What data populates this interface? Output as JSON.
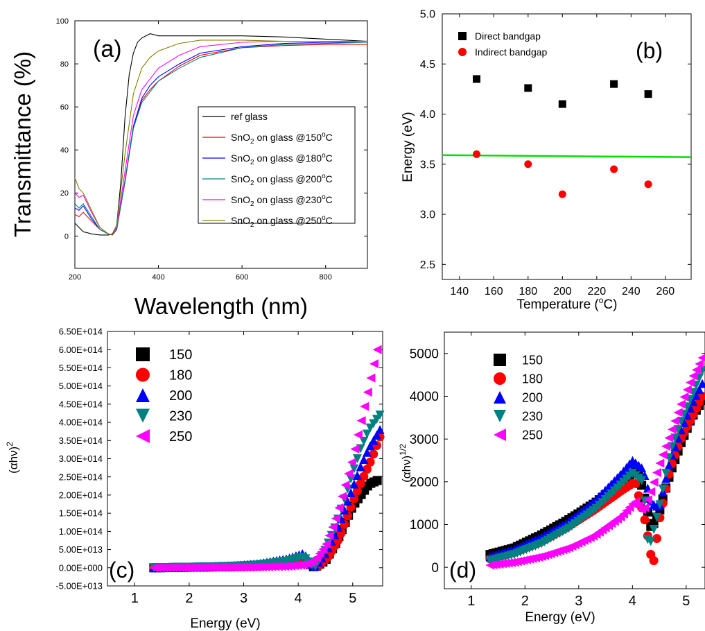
{
  "figure": {
    "background": "#ffffff"
  },
  "chart_data": [
    {
      "id": "a",
      "type": "line",
      "panel_label": "(a)",
      "xlabel": "Wavelength (nm)",
      "ylabel": "Transmittance (%)",
      "xlim": [
        200,
        900
      ],
      "ylim": [
        -15,
        100
      ],
      "xticks": [
        200,
        400,
        600,
        800
      ],
      "yticks": [
        0,
        20,
        40,
        60,
        80,
        100
      ],
      "grid": false,
      "legend_position": "center-right",
      "series": [
        {
          "name": "ref glass",
          "label_main": "ref glass",
          "label_sup": "",
          "label_sub": "",
          "label_rest": "",
          "color": "#000000",
          "x": [
            200,
            210,
            220,
            240,
            260,
            280,
            290,
            300,
            310,
            320,
            330,
            340,
            350,
            360,
            370,
            380,
            400,
            450,
            500,
            600,
            700,
            800,
            900
          ],
          "y": [
            6,
            4,
            2,
            1,
            0.5,
            0.5,
            1,
            5,
            25,
            55,
            75,
            85,
            90,
            92,
            93,
            94,
            93,
            93,
            93,
            93,
            92.5,
            91.5,
            90.5
          ]
        },
        {
          "name": "SnO2 on glass @150oC",
          "label_main": "SnO",
          "label_sub": "2",
          "label_rest": " on glass @150",
          "label_sup": "o",
          "label_tail": "C",
          "color": "#ff0000",
          "x": [
            200,
            210,
            220,
            240,
            260,
            280,
            290,
            300,
            320,
            340,
            360,
            380,
            400,
            450,
            500,
            600,
            700,
            800,
            900
          ],
          "y": [
            10,
            9,
            11,
            7,
            3,
            1,
            0.5,
            3,
            25,
            50,
            63,
            68,
            72,
            79,
            84,
            87.5,
            88.5,
            89,
            89
          ]
        },
        {
          "name": "SnO2 on glass @180oC",
          "label_main": "SnO",
          "label_sub": "2",
          "label_rest": " on glass @180",
          "label_sup": "o",
          "label_tail": "C",
          "color": "#0000ff",
          "x": [
            200,
            210,
            220,
            240,
            260,
            280,
            290,
            300,
            320,
            340,
            360,
            380,
            400,
            450,
            500,
            600,
            700,
            800,
            900
          ],
          "y": [
            13,
            12,
            14,
            8,
            3,
            1,
            0.5,
            3,
            26,
            51,
            64,
            70,
            74,
            80,
            85,
            88,
            89.5,
            90,
            90
          ]
        },
        {
          "name": "SnO2 on glass @200oC",
          "label_main": "SnO",
          "label_sub": "2",
          "label_rest": " on glass @200",
          "label_sup": "o",
          "label_tail": "C",
          "color": "#008080",
          "x": [
            200,
            210,
            220,
            240,
            260,
            280,
            290,
            300,
            320,
            340,
            360,
            380,
            400,
            450,
            500,
            600,
            700,
            800,
            900
          ],
          "y": [
            15,
            13,
            15,
            9,
            3,
            1,
            0.5,
            3,
            26,
            50,
            62,
            67,
            72,
            78,
            83,
            87.5,
            89,
            89.5,
            90
          ]
        },
        {
          "name": "SnO2 on glass @230oC",
          "label_main": "SnO",
          "label_sub": "2",
          "label_rest": " on glass @230",
          "label_sup": "o",
          "label_tail": "C",
          "color": "#ff00ff",
          "x": [
            200,
            210,
            220,
            240,
            260,
            280,
            290,
            300,
            320,
            340,
            360,
            380,
            400,
            450,
            500,
            600,
            700,
            800,
            900
          ],
          "y": [
            20,
            18,
            19,
            11,
            4,
            1,
            0.5,
            4,
            30,
            56,
            68,
            73,
            78,
            84,
            88,
            90,
            90.5,
            90.5,
            90.5
          ]
        },
        {
          "name": "SnO2 on glass @250oC",
          "label_main": "SnO",
          "label_sub": "2",
          "label_rest": " on glass @250",
          "label_sup": "o",
          "label_tail": "C",
          "color": "#808000",
          "x": [
            200,
            210,
            220,
            240,
            260,
            280,
            290,
            300,
            320,
            340,
            360,
            380,
            400,
            450,
            500,
            600,
            700,
            800,
            900
          ],
          "y": [
            27,
            22,
            20,
            12,
            4,
            1,
            0.5,
            5,
            38,
            66,
            78,
            83,
            86,
            89.5,
            91,
            91,
            90.5,
            90.5,
            90.5
          ]
        }
      ]
    },
    {
      "id": "b",
      "type": "scatter",
      "panel_label": "(b)",
      "xlabel_main": "Temperature (",
      "xlabel_sup": "o",
      "xlabel_tail": "C)",
      "ylabel": "Energy (eV)",
      "xlim": [
        130,
        275
      ],
      "ylim": [
        2.35,
        5.0
      ],
      "xticks": [
        140,
        160,
        180,
        200,
        220,
        240,
        260
      ],
      "yticks": [
        2.5,
        3.0,
        3.5,
        4.0,
        4.5,
        5.0
      ],
      "ytick_labels": [
        "2.5",
        "3.0",
        "3.5",
        "4.0",
        "4.5",
        "5.0"
      ],
      "grid": false,
      "legend_position": "top-left",
      "series": [
        {
          "name": "Direct bandgap",
          "marker": "square",
          "color": "#000000",
          "x": [
            150,
            180,
            200,
            230,
            250
          ],
          "y": [
            4.35,
            4.26,
            4.1,
            4.3,
            4.2
          ]
        },
        {
          "name": "Indirect bandgap",
          "marker": "circle",
          "color": "#ff0000",
          "x": [
            150,
            180,
            200,
            230,
            250
          ],
          "y": [
            3.6,
            3.5,
            3.2,
            3.45,
            3.3
          ]
        }
      ],
      "reference_line": {
        "x": [
          130,
          275
        ],
        "y": [
          3.59,
          3.57
        ],
        "color": "#00e000"
      }
    },
    {
      "id": "c",
      "type": "scatter",
      "panel_label": "(c)",
      "xlabel": "Energy (eV)",
      "ylabel_main": "(αhν)",
      "ylabel_sup": "2",
      "xlim": [
        0.5,
        5.55
      ],
      "ylim": [
        -50000000000000.0,
        650000000000000.0
      ],
      "xticks": [
        1,
        2,
        3,
        4,
        5
      ],
      "yticks": [
        -50000000000000.0,
        0,
        50000000000000.0,
        100000000000000.0,
        150000000000000.0,
        200000000000000.0,
        250000000000000.0,
        300000000000000.0,
        350000000000000.0,
        400000000000000.0,
        450000000000000.0,
        500000000000000.0,
        550000000000000.0,
        600000000000000.0,
        650000000000000.0
      ],
      "ytick_labels": [
        "-5.00E+013",
        "0.00E+000",
        "5.00E+013",
        "1.00E+014",
        "1.50E+014",
        "2.00E+014",
        "2.50E+014",
        "3.00E+014",
        "3.50E+014",
        "4.00E+014",
        "4.50E+014",
        "5.00E+014",
        "5.50E+014",
        "6.00E+014",
        "6.50E+014"
      ],
      "grid": false,
      "legend_position": "top-left",
      "series": [
        {
          "name": "150",
          "marker": "square",
          "color": "#000000",
          "x": [
            1.35,
            1.8,
            2.3,
            2.8,
            3.3,
            3.8,
            4.1,
            4.3,
            4.5,
            4.7,
            4.85,
            5.0,
            5.15,
            5.3,
            5.45
          ],
          "y": [
            0,
            1000000000000.0,
            2000000000000.0,
            3000000000000.0,
            5000000000000.0,
            10000000000000.0,
            20000000000000.0,
            1000000000000.0,
            20000000000000.0,
            70000000000000.0,
            120000000000000.0,
            170000000000000.0,
            200000000000000.0,
            230000000000000.0,
            240000000000000.0
          ]
        },
        {
          "name": "180",
          "marker": "circle",
          "color": "#ff0000",
          "x": [
            1.35,
            1.8,
            2.3,
            2.8,
            3.3,
            3.8,
            4.1,
            4.35,
            4.55,
            4.75,
            4.9,
            5.05,
            5.2,
            5.35,
            5.5
          ],
          "y": [
            0,
            1000000000000.0,
            2000000000000.0,
            3000000000000.0,
            5000000000000.0,
            12000000000000.0,
            22000000000000.0,
            1000000000000.0,
            30000000000000.0,
            80000000000000.0,
            140000000000000.0,
            200000000000000.0,
            250000000000000.0,
            300000000000000.0,
            360000000000000.0
          ]
        },
        {
          "name": "200",
          "marker": "triangle-up",
          "color": "#0000ff",
          "x": [
            1.35,
            1.8,
            2.3,
            2.8,
            3.3,
            3.8,
            4.1,
            4.3,
            4.5,
            4.7,
            4.85,
            5.0,
            5.15,
            5.3,
            5.5
          ],
          "y": [
            0,
            1000000000000.0,
            3000000000000.0,
            6000000000000.0,
            12000000000000.0,
            25000000000000.0,
            40000000000000.0,
            1000000000000.0,
            40000000000000.0,
            100000000000000.0,
            160000000000000.0,
            220000000000000.0,
            280000000000000.0,
            330000000000000.0,
            380000000000000.0
          ]
        },
        {
          "name": "230",
          "marker": "triangle-down",
          "color": "#008080",
          "x": [
            1.35,
            1.8,
            2.3,
            2.8,
            3.3,
            3.8,
            4.1,
            4.3,
            4.5,
            4.7,
            4.85,
            5.0,
            5.15,
            5.3,
            5.5
          ],
          "y": [
            0,
            1000000000000.0,
            2000000000000.0,
            4000000000000.0,
            8000000000000.0,
            18000000000000.0,
            30000000000000.0,
            1000000000000.0,
            50000000000000.0,
            120000000000000.0,
            190000000000000.0,
            260000000000000.0,
            330000000000000.0,
            380000000000000.0,
            420000000000000.0
          ]
        },
        {
          "name": "250",
          "marker": "triangle-left",
          "color": "#ff00ff",
          "x": [
            1.35,
            1.8,
            2.3,
            2.8,
            3.3,
            3.8,
            4.1,
            4.3,
            4.5,
            4.7,
            4.85,
            5.0,
            5.15,
            5.3,
            5.45
          ],
          "y": [
            0,
            0,
            1000000000000.0,
            1000000000000.0,
            2000000000000.0,
            4000000000000.0,
            8000000000000.0,
            20000000000000.0,
            60000000000000.0,
            140000000000000.0,
            220000000000000.0,
            300000000000000.0,
            400000000000000.0,
            500000000000000.0,
            600000000000000.0
          ]
        }
      ]
    },
    {
      "id": "d",
      "type": "scatter",
      "panel_label": "(d)",
      "xlabel": "Energy (eV)",
      "ylabel_main": "(αhν)",
      "ylabel_sup": "1/2",
      "xlim": [
        0.5,
        5.35
      ],
      "ylim": [
        -500,
        5500
      ],
      "xticks": [
        1,
        2,
        3,
        4,
        5
      ],
      "yticks": [
        0,
        1000,
        2000,
        3000,
        4000,
        5000
      ],
      "ytick_labels": [
        "0",
        "1000",
        "2000",
        "3000",
        "4000",
        "5000"
      ],
      "grid": false,
      "legend_position": "top-left",
      "series": [
        {
          "name": "150",
          "marker": "square",
          "color": "#000000",
          "x": [
            1.35,
            1.8,
            2.3,
            2.8,
            3.3,
            3.8,
            4.1,
            4.25,
            4.35,
            4.5,
            4.7,
            4.9,
            5.1,
            5.3
          ],
          "y": [
            300,
            450,
            750,
            1100,
            1500,
            2000,
            2300,
            1500,
            900,
            1300,
            2200,
            2900,
            3500,
            3900
          ]
        },
        {
          "name": "180",
          "marker": "circle",
          "color": "#ff0000",
          "x": [
            1.35,
            1.8,
            2.3,
            2.8,
            3.3,
            3.8,
            4.05,
            4.25,
            4.38,
            4.5,
            4.7,
            4.9,
            5.1,
            5.3
          ],
          "y": [
            200,
            350,
            600,
            950,
            1350,
            1800,
            2000,
            1000,
            0,
            1100,
            2300,
            3000,
            3500,
            4000
          ]
        },
        {
          "name": "200",
          "marker": "triangle-up",
          "color": "#0000ff",
          "x": [
            1.35,
            1.8,
            2.3,
            2.8,
            3.3,
            3.8,
            4.0,
            4.2,
            4.35,
            4.5,
            4.7,
            4.9,
            5.1,
            5.3
          ],
          "y": [
            250,
            420,
            700,
            1050,
            1550,
            2200,
            2500,
            2300,
            1500,
            1400,
            2500,
            3200,
            3800,
            4300
          ]
        },
        {
          "name": "230",
          "marker": "triangle-down",
          "color": "#008080",
          "x": [
            1.35,
            1.8,
            2.3,
            2.8,
            3.3,
            3.8,
            4.0,
            4.2,
            4.3,
            4.5,
            4.7,
            4.9,
            5.1,
            5.3
          ],
          "y": [
            150,
            300,
            550,
            900,
            1350,
            1950,
            2200,
            2000,
            400,
            1400,
            2700,
            3400,
            4000,
            4600
          ]
        },
        {
          "name": "250",
          "marker": "triangle-left",
          "color": "#ff00ff",
          "x": [
            1.35,
            1.8,
            2.3,
            2.8,
            3.3,
            3.8,
            4.05,
            4.2,
            4.35,
            4.5,
            4.7,
            4.9,
            5.1,
            5.3
          ],
          "y": [
            50,
            120,
            250,
            450,
            750,
            1200,
            1550,
            1300,
            1800,
            2400,
            3100,
            3800,
            4400,
            4900
          ]
        }
      ]
    }
  ]
}
